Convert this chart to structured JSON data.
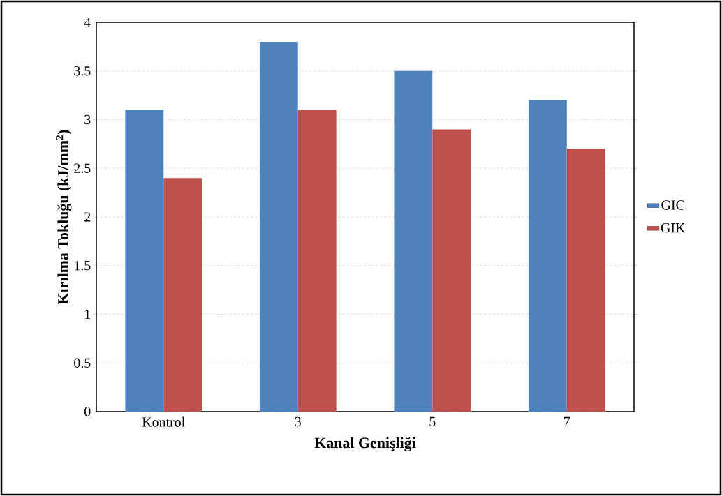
{
  "chart_data": {
    "type": "bar",
    "xlabel": "Kanal Genişliği",
    "ylabel": "Kırılma Tokluğu (kJ/mm$^{2}$)",
    "categories": [
      "Kontrol",
      "3",
      "5",
      "7"
    ],
    "series": [
      {
        "name": "GIC",
        "color": "#4f81bd",
        "values": [
          3.1,
          3.8,
          3.5,
          3.2
        ]
      },
      {
        "name": "GIK",
        "color": "#c0504d",
        "values": [
          2.4,
          3.1,
          2.9,
          2.7
        ]
      }
    ],
    "ylim": [
      0,
      4
    ],
    "yticks": [
      0,
      0.5,
      1,
      1.5,
      2,
      2.5,
      3,
      3.5,
      4
    ],
    "grid": "y",
    "legend": "right"
  }
}
